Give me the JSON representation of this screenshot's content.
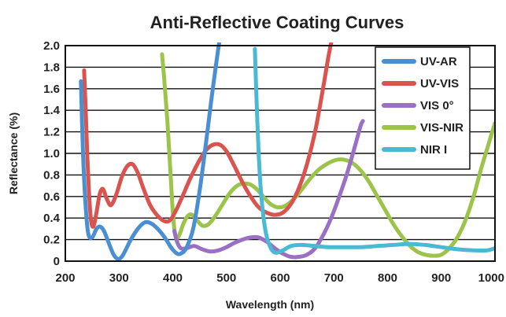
{
  "chart_data": {
    "type": "line",
    "title": "Anti-Reflective Coating Curves",
    "xlabel": "Wavelength (nm)",
    "ylabel": "Reflectance (%)",
    "xlim": [
      200,
      1000
    ],
    "ylim": [
      0,
      2.0
    ],
    "x_ticks": [
      200,
      300,
      400,
      500,
      600,
      700,
      800,
      900,
      1000
    ],
    "y_ticks": [
      0,
      0.2,
      0.4,
      0.6,
      0.8,
      1.0,
      1.2,
      1.4,
      1.6,
      1.8,
      2.0
    ],
    "x_tick_labels": [
      "200",
      "300",
      "400",
      "500",
      "600",
      "700",
      "800",
      "900",
      "1000"
    ],
    "y_tick_labels": [
      "0",
      "0.2",
      "0.4",
      "0.6",
      "0.8",
      "1.0",
      "1.2",
      "1.4",
      "1.6",
      "1.8",
      "2.0"
    ],
    "grid": "horizontal",
    "legend_position": "top-right",
    "series": [
      {
        "name": "UV-AR",
        "color": "#4a8fd1",
        "points": [
          [
            229,
            1.67
          ],
          [
            233,
            1.0
          ],
          [
            238,
            0.5
          ],
          [
            243,
            0.25
          ],
          [
            250,
            0.22
          ],
          [
            258,
            0.3
          ],
          [
            265,
            0.32
          ],
          [
            272,
            0.28
          ],
          [
            280,
            0.18
          ],
          [
            290,
            0.06
          ],
          [
            298,
            0.02
          ],
          [
            305,
            0.04
          ],
          [
            312,
            0.1
          ],
          [
            322,
            0.2
          ],
          [
            335,
            0.3
          ],
          [
            348,
            0.36
          ],
          [
            360,
            0.35
          ],
          [
            372,
            0.3
          ],
          [
            385,
            0.22
          ],
          [
            398,
            0.12
          ],
          [
            408,
            0.07
          ],
          [
            415,
            0.07
          ],
          [
            425,
            0.12
          ],
          [
            438,
            0.3
          ],
          [
            450,
            0.65
          ],
          [
            462,
            1.1
          ],
          [
            472,
            1.5
          ],
          [
            480,
            1.8
          ],
          [
            487,
            2.05
          ]
        ]
      },
      {
        "name": "UV-VIS",
        "color": "#d9534f",
        "points": [
          [
            235,
            1.77
          ],
          [
            238,
            1.4
          ],
          [
            242,
            0.85
          ],
          [
            247,
            0.42
          ],
          [
            252,
            0.32
          ],
          [
            258,
            0.45
          ],
          [
            264,
            0.62
          ],
          [
            270,
            0.67
          ],
          [
            277,
            0.58
          ],
          [
            285,
            0.52
          ],
          [
            295,
            0.62
          ],
          [
            305,
            0.78
          ],
          [
            315,
            0.88
          ],
          [
            325,
            0.9
          ],
          [
            335,
            0.82
          ],
          [
            345,
            0.68
          ],
          [
            358,
            0.52
          ],
          [
            372,
            0.42
          ],
          [
            385,
            0.37
          ],
          [
            395,
            0.38
          ],
          [
            405,
            0.46
          ],
          [
            418,
            0.6
          ],
          [
            432,
            0.76
          ],
          [
            448,
            0.92
          ],
          [
            462,
            1.03
          ],
          [
            475,
            1.08
          ],
          [
            488,
            1.08
          ],
          [
            500,
            1.02
          ],
          [
            515,
            0.88
          ],
          [
            530,
            0.73
          ],
          [
            545,
            0.6
          ],
          [
            560,
            0.5
          ],
          [
            575,
            0.45
          ],
          [
            590,
            0.43
          ],
          [
            605,
            0.45
          ],
          [
            620,
            0.53
          ],
          [
            635,
            0.68
          ],
          [
            650,
            0.9
          ],
          [
            665,
            1.2
          ],
          [
            678,
            1.55
          ],
          [
            690,
            1.9
          ],
          [
            696,
            2.05
          ]
        ]
      },
      {
        "name": "VIS 0°",
        "color": "#9b6fc4",
        "points": [
          [
            403,
            0.28
          ],
          [
            408,
            0.18
          ],
          [
            415,
            0.12
          ],
          [
            425,
            0.12
          ],
          [
            440,
            0.14
          ],
          [
            455,
            0.11
          ],
          [
            470,
            0.09
          ],
          [
            485,
            0.1
          ],
          [
            500,
            0.13
          ],
          [
            515,
            0.17
          ],
          [
            530,
            0.2
          ],
          [
            545,
            0.22
          ],
          [
            560,
            0.22
          ],
          [
            575,
            0.18
          ],
          [
            590,
            0.12
          ],
          [
            605,
            0.07
          ],
          [
            620,
            0.04
          ],
          [
            635,
            0.04
          ],
          [
            650,
            0.06
          ],
          [
            665,
            0.12
          ],
          [
            680,
            0.24
          ],
          [
            695,
            0.4
          ],
          [
            710,
            0.6
          ],
          [
            725,
            0.82
          ],
          [
            740,
            1.08
          ],
          [
            750,
            1.26
          ],
          [
            754,
            1.3
          ]
        ]
      },
      {
        "name": "VIS-NIR",
        "color": "#9dc44a",
        "points": [
          [
            380,
            1.92
          ],
          [
            384,
            1.7
          ],
          [
            390,
            1.3
          ],
          [
            396,
            0.8
          ],
          [
            401,
            0.4
          ],
          [
            406,
            0.22
          ],
          [
            412,
            0.24
          ],
          [
            420,
            0.35
          ],
          [
            428,
            0.42
          ],
          [
            436,
            0.43
          ],
          [
            445,
            0.38
          ],
          [
            455,
            0.33
          ],
          [
            466,
            0.34
          ],
          [
            478,
            0.41
          ],
          [
            492,
            0.52
          ],
          [
            506,
            0.63
          ],
          [
            520,
            0.7
          ],
          [
            532,
            0.72
          ],
          [
            545,
            0.71
          ],
          [
            558,
            0.66
          ],
          [
            570,
            0.59
          ],
          [
            582,
            0.53
          ],
          [
            595,
            0.5
          ],
          [
            608,
            0.51
          ],
          [
            622,
            0.56
          ],
          [
            638,
            0.65
          ],
          [
            655,
            0.76
          ],
          [
            672,
            0.85
          ],
          [
            690,
            0.91
          ],
          [
            705,
            0.94
          ],
          [
            720,
            0.94
          ],
          [
            735,
            0.91
          ],
          [
            750,
            0.84
          ],
          [
            765,
            0.74
          ],
          [
            780,
            0.61
          ],
          [
            795,
            0.48
          ],
          [
            810,
            0.35
          ],
          [
            825,
            0.24
          ],
          [
            840,
            0.15
          ],
          [
            855,
            0.09
          ],
          [
            870,
            0.06
          ],
          [
            885,
            0.05
          ],
          [
            900,
            0.06
          ],
          [
            915,
            0.12
          ],
          [
            930,
            0.22
          ],
          [
            945,
            0.38
          ],
          [
            960,
            0.6
          ],
          [
            975,
            0.87
          ],
          [
            990,
            1.12
          ],
          [
            1000,
            1.28
          ]
        ]
      },
      {
        "name": "NIR I",
        "color": "#4ab9d4",
        "points": [
          [
            553,
            1.97
          ],
          [
            556,
            1.5
          ],
          [
            560,
            1.0
          ],
          [
            565,
            0.6
          ],
          [
            572,
            0.3
          ],
          [
            580,
            0.15
          ],
          [
            590,
            0.08
          ],
          [
            605,
            0.1
          ],
          [
            620,
            0.14
          ],
          [
            640,
            0.15
          ],
          [
            665,
            0.14
          ],
          [
            690,
            0.13
          ],
          [
            720,
            0.13
          ],
          [
            750,
            0.13
          ],
          [
            780,
            0.14
          ],
          [
            810,
            0.15
          ],
          [
            840,
            0.16
          ],
          [
            870,
            0.15
          ],
          [
            900,
            0.13
          ],
          [
            930,
            0.11
          ],
          [
            960,
            0.1
          ],
          [
            985,
            0.1
          ],
          [
            1000,
            0.12
          ]
        ]
      }
    ]
  }
}
